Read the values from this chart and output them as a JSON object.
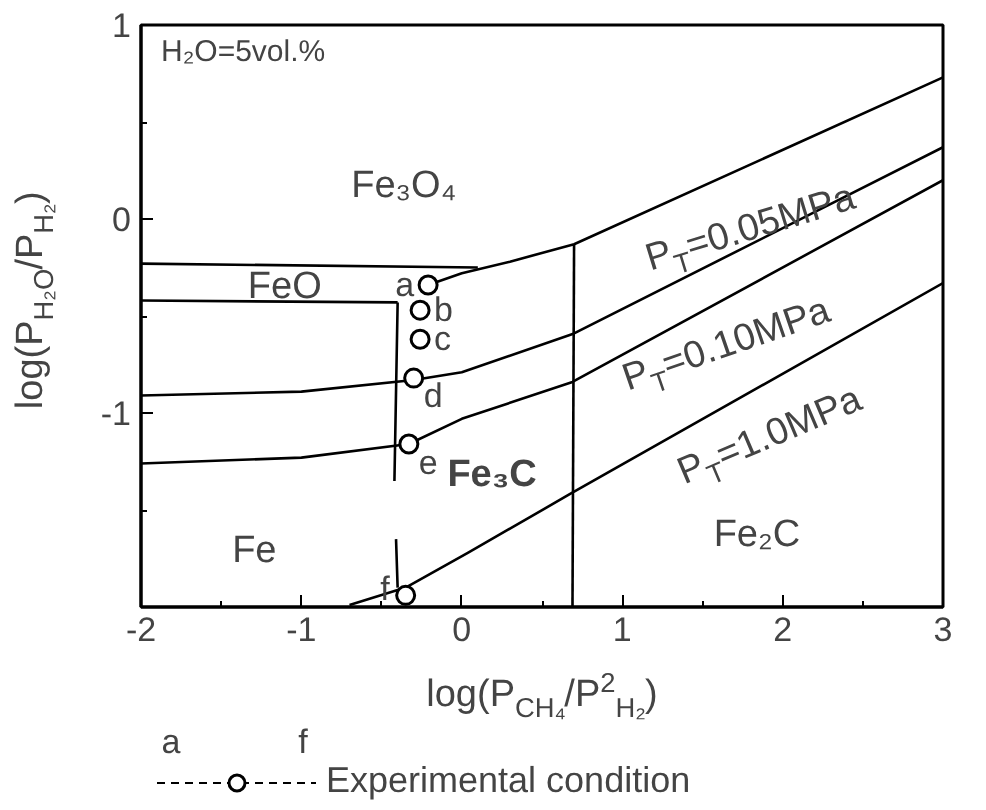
{
  "chart_data": {
    "type": "line",
    "xlabel": "log(P$_{CH₄}$/P$^{2}$$_{H₂}$)",
    "ylabel": "log(P$_{H₂O}$/P$_{H₂}$)",
    "xlim": [
      -2,
      3
    ],
    "ylim": [
      -2,
      1
    ],
    "xticks": [
      -2,
      -1,
      0,
      1,
      2,
      3
    ],
    "yticks": [
      -1,
      0,
      1
    ],
    "grid": false,
    "legend": "bottom",
    "line_style": "solid",
    "series": [
      {
        "color": "#000000",
        "x": [
          -2.0,
          0.1
        ],
        "values": [
          -0.23,
          -0.25
        ]
      },
      {
        "color": "#000000",
        "x": [
          -0.21,
          0.0,
          0.3,
          0.7,
          3.0
        ],
        "values": [
          -0.34,
          -0.28,
          -0.22,
          -0.13,
          0.73
        ]
      },
      {
        "color": "#000000",
        "x": [
          -2.0,
          -0.4
        ],
        "values": [
          -0.42,
          -0.43
        ]
      },
      {
        "color": "#000000",
        "x": [
          -0.4,
          -0.42,
          null,
          -0.41,
          -0.4
        ],
        "values": [
          -0.43,
          -1.35,
          null,
          -1.65,
          -1.9
        ]
      },
      {
        "color": "#000000",
        "x": [
          0.7,
          0.69
        ],
        "values": [
          -0.13,
          -2.0
        ]
      },
      {
        "color": "#000000",
        "x": [
          -2.0,
          -1.0,
          -0.3,
          0.0,
          0.7,
          3.0
        ],
        "values": [
          -0.91,
          -0.89,
          -0.83,
          -0.79,
          -0.59,
          0.37
        ]
      },
      {
        "color": "#000000",
        "x": [
          -2.0,
          -1.0,
          -0.33,
          0.0,
          0.69,
          3.0
        ],
        "values": [
          -1.26,
          -1.23,
          -1.16,
          -1.03,
          -0.84,
          0.2
        ]
      },
      {
        "color": "#000000",
        "x": [
          -0.7,
          -0.35,
          0.04,
          0.67,
          3.0
        ],
        "values": [
          -1.99,
          -1.9,
          -1.72,
          -1.42,
          -0.33
        ]
      },
      {
        "name": "Experimental condition",
        "type": "scatter",
        "marker": "circle",
        "color": "#000000",
        "x": [
          -0.21,
          -0.26,
          -0.26,
          -0.3,
          -0.33,
          -0.35
        ],
        "values": [
          -0.34,
          -0.47,
          -0.62,
          -0.82,
          -1.16,
          -1.94
        ],
        "value_labels": [
          "a",
          "b",
          "c",
          "d",
          "e",
          "f"
        ]
      }
    ],
    "annotations": [
      "H₂O=5vol.%",
      "Fe₃O₄",
      "FeO",
      "Fe",
      "Fe₃C",
      "Fe₂C",
      "P$_{T}$=0.05MPa",
      "P$_{T}$=0.10MPa",
      "P$_{T}$=1.0MPa"
    ]
  }
}
